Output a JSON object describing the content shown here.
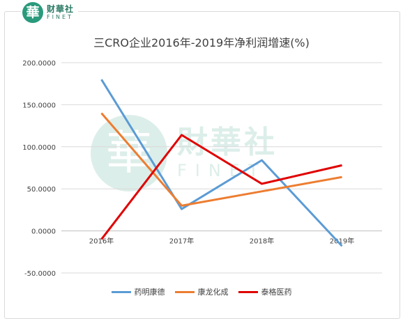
{
  "logo": {
    "mark": "華",
    "cn": "财華社",
    "en": "FINET"
  },
  "watermark": {
    "mark": "華",
    "cn": "財華社",
    "en": "FINET"
  },
  "chart_data": {
    "type": "line",
    "title": "三CRO企业2016年-2019年净利润增速(%)",
    "categories": [
      "2016年",
      "2017年",
      "2018年",
      "2019年"
    ],
    "series": [
      {
        "name": "药明康德",
        "color": "#5b9bd5",
        "values": [
          180,
          26,
          84,
          -18
        ]
      },
      {
        "name": "康龙化成",
        "color": "#ed7d31",
        "values": [
          140,
          30,
          47,
          64
        ]
      },
      {
        "name": "泰格医药",
        "color": "#e00000",
        "values": [
          -10,
          114,
          56,
          78
        ]
      }
    ],
    "yticks": [
      "200.0000",
      "150.0000",
      "100.0000",
      "50.0000",
      "0.0000",
      "-50.0000"
    ],
    "ylim": [
      -50,
      200
    ],
    "grid": true,
    "legend_position": "bottom"
  }
}
